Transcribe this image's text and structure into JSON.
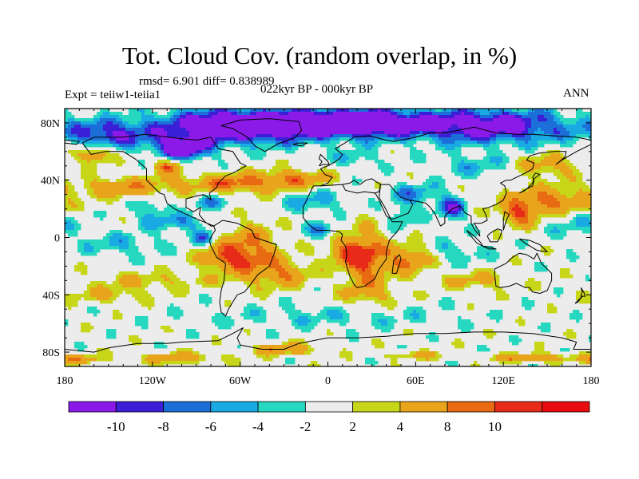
{
  "title": "Tot. Cloud Cov. (random overlap, in %)",
  "stats": "rmsd= 6.901 diff= 0.838989",
  "experiment": "Expt = teiiw1-teiia1",
  "period": "022kyr BP - 000kyr BP",
  "season": "ANN",
  "map": {
    "lon_range": [
      -180,
      180
    ],
    "lat_range": [
      -90,
      90
    ],
    "lon_ticks": [
      {
        "value": -180,
        "label": "180"
      },
      {
        "value": -120,
        "label": "120W"
      },
      {
        "value": -60,
        "label": "60W"
      },
      {
        "value": 0,
        "label": "0"
      },
      {
        "value": 60,
        "label": "60E"
      },
      {
        "value": 120,
        "label": "120E"
      },
      {
        "value": 180,
        "label": "180"
      }
    ],
    "lat_ticks": [
      {
        "value": 80,
        "label": "80N"
      },
      {
        "value": 40,
        "label": "40N"
      },
      {
        "value": 0,
        "label": "0"
      },
      {
        "value": -40,
        "label": "40S"
      },
      {
        "value": -80,
        "label": "80S"
      }
    ]
  },
  "colorbar": {
    "colors": [
      "#8b1ae8",
      "#3a1fd6",
      "#1c6fd8",
      "#19a9e3",
      "#27d8c0",
      "#ececec",
      "#c8d61a",
      "#e8a51c",
      "#e86a13",
      "#e82a18",
      "#e80c12"
    ],
    "labels": [
      "-10",
      "-8",
      "-6",
      "-4",
      "-2",
      "2",
      "4",
      "8",
      "10"
    ]
  },
  "colors": {
    "land_outline": "#000000",
    "background": "#ffffff"
  }
}
